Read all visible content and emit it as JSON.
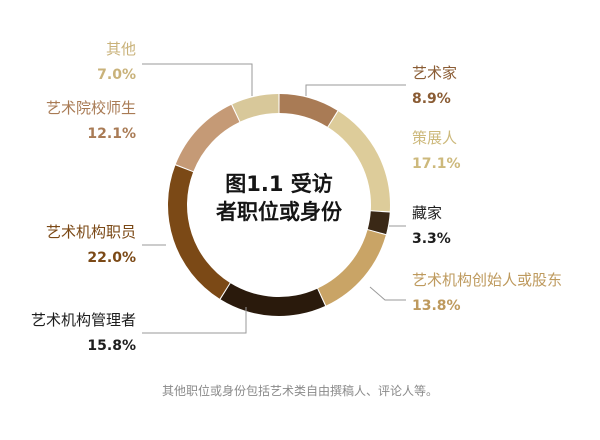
{
  "chart_data": {
    "type": "pie",
    "title": "图1.1  受访者职位或身份",
    "title_lines": [
      "图1.1  受访",
      "者职位或身份"
    ],
    "categories": [
      "艺术家",
      "策展人",
      "藏家",
      "艺术机构创始人或股东",
      "艺术机构管理者",
      "艺术机构职员",
      "艺术院校师生",
      "其他"
    ],
    "values": [
      8.9,
      17.1,
      3.3,
      13.8,
      15.8,
      22.0,
      12.1,
      7.0
    ],
    "value_labels": [
      "8.9%",
      "17.1%",
      "3.3%",
      "13.8%",
      "15.8%",
      "22.0%",
      "12.1%",
      "7.0%"
    ],
    "colors": [
      "#A97B55",
      "#DDCC9A",
      "#3A2816",
      "#C9A466",
      "#2A1A0C",
      "#7B4916",
      "#C59A76",
      "#D8C89A"
    ],
    "label_colors": [
      "#8A5C34",
      "#CDB97C",
      "#1E1E1E",
      "#BE9A5E",
      "#1E1E1E",
      "#7B4916",
      "#A97B55",
      "#C9B27A"
    ],
    "donut": true,
    "start_angle_deg": 0,
    "direction": "clockwise"
  },
  "footnote": "其他职位或身份包括艺术类自由撰稿人、评论人等。"
}
